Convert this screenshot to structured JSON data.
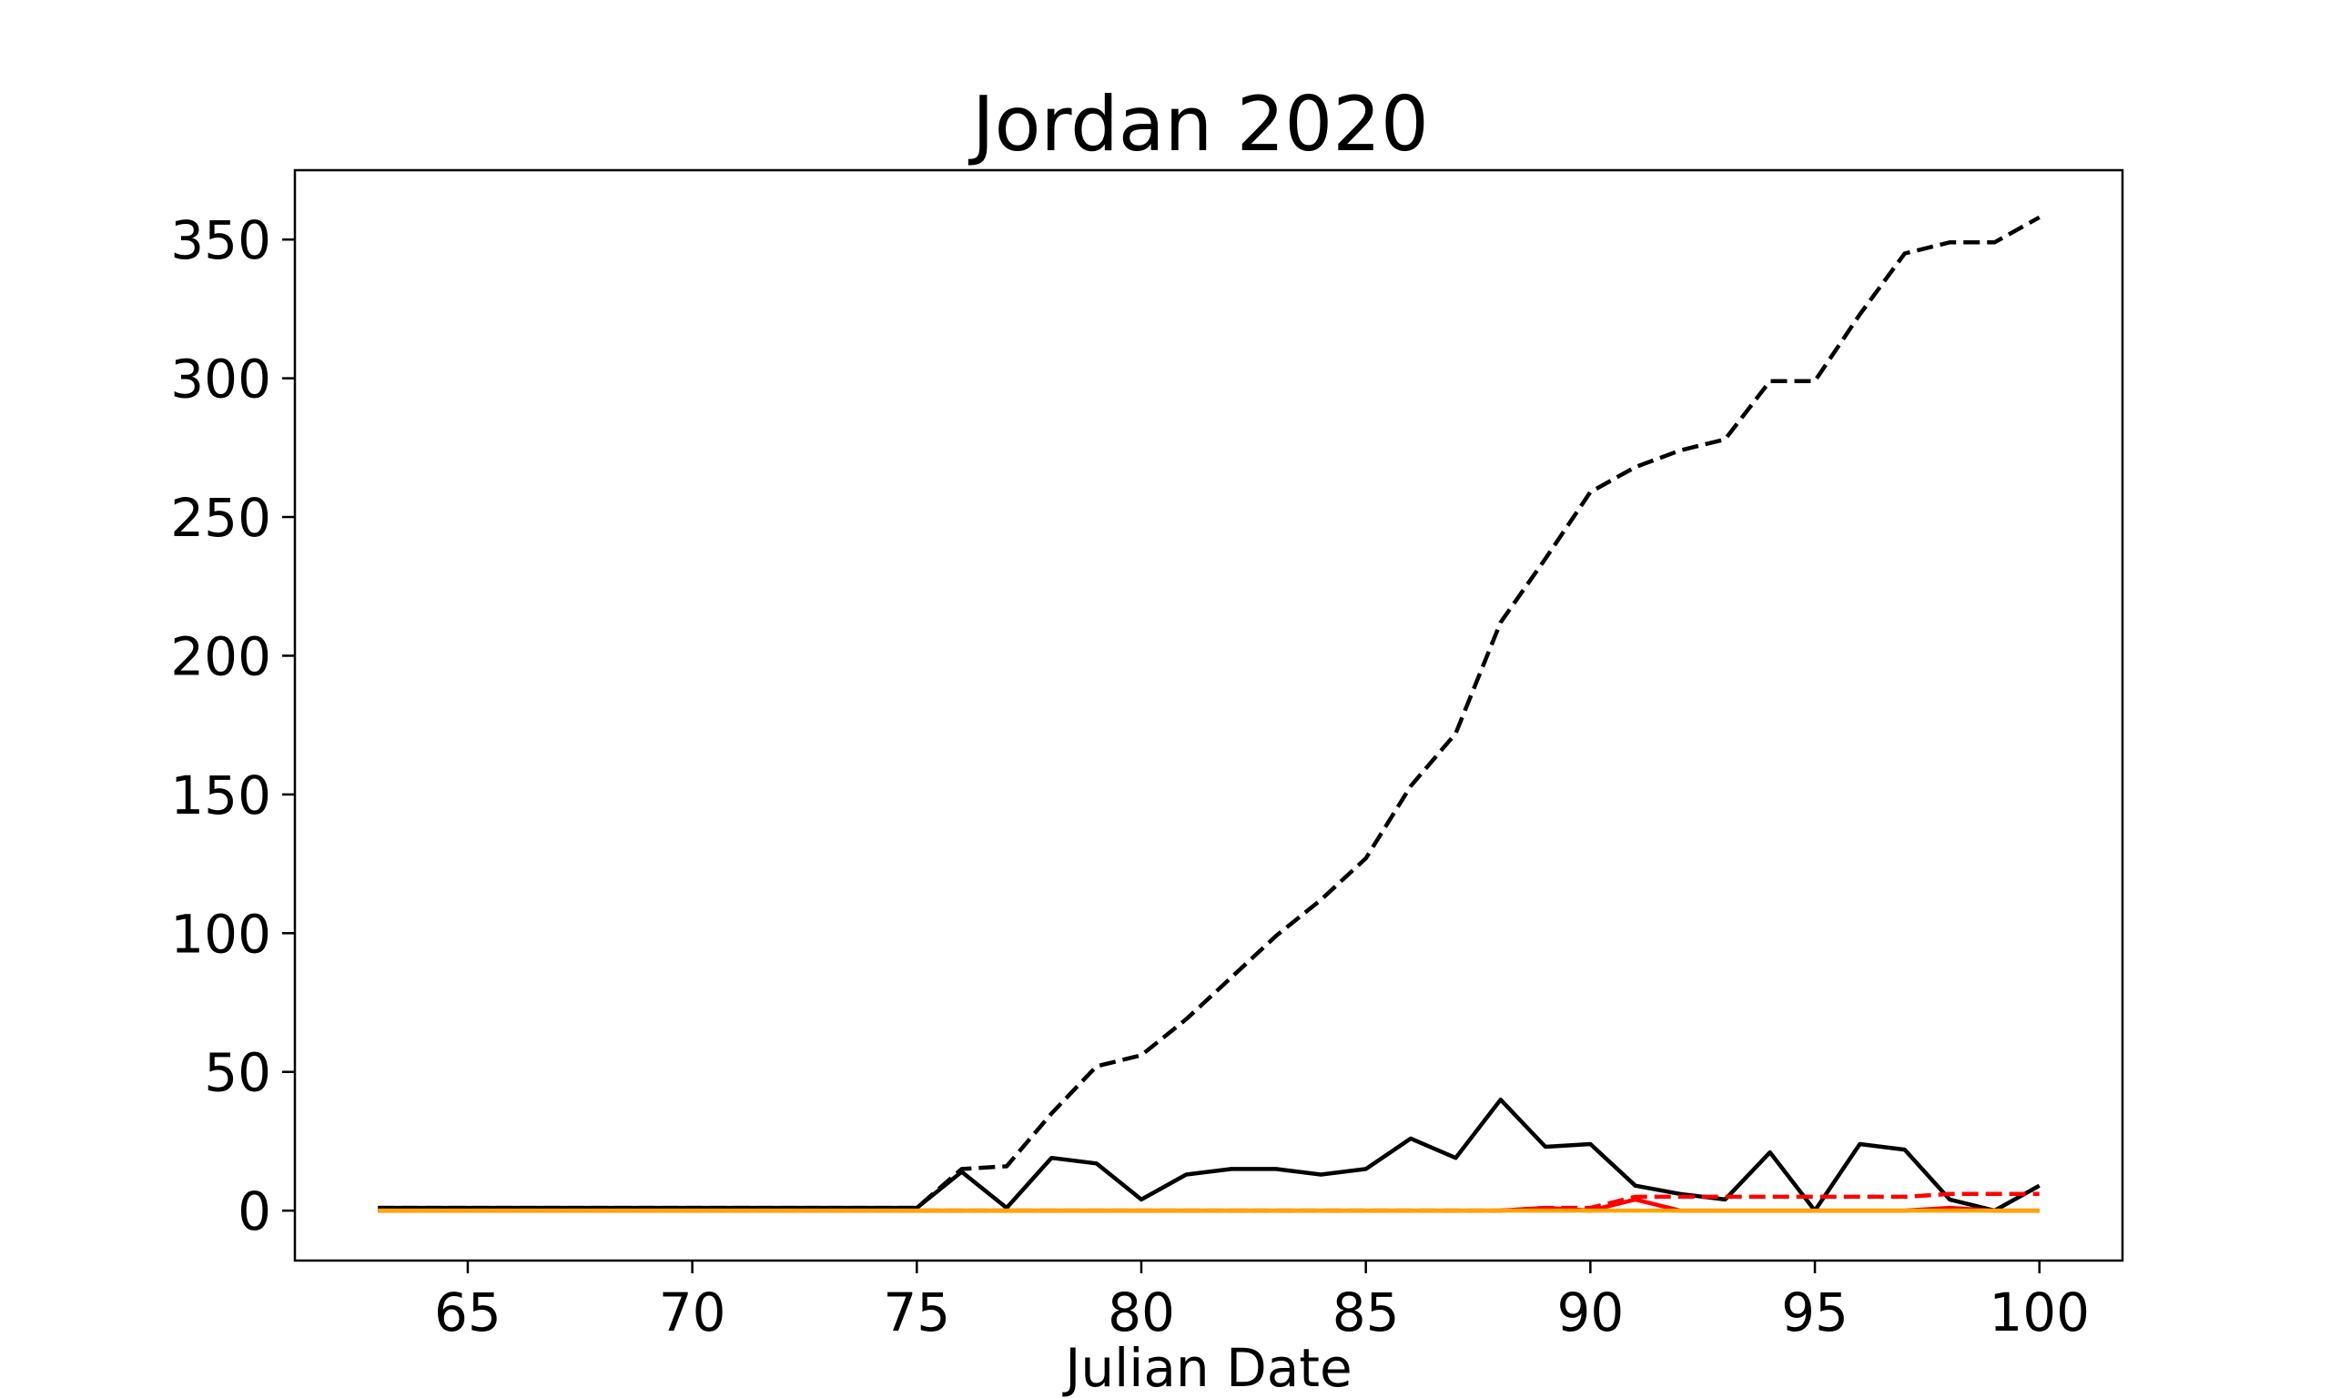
{
  "chart_data": {
    "type": "line",
    "title": "Jordan 2020",
    "xlabel": "Julian Date",
    "ylabel": "",
    "xlim": [
      61.15,
      101.85
    ],
    "ylim": [
      -18,
      375
    ],
    "xticks": [
      65,
      70,
      75,
      80,
      85,
      90,
      95,
      100
    ],
    "yticks": [
      0,
      50,
      100,
      150,
      200,
      250,
      300,
      350
    ],
    "grid": false,
    "legend": "none",
    "x": [
      63,
      64,
      65,
      66,
      67,
      68,
      69,
      70,
      71,
      72,
      73,
      74,
      75,
      76,
      77,
      78,
      79,
      80,
      81,
      82,
      83,
      84,
      85,
      86,
      87,
      88,
      89,
      90,
      91,
      92,
      93,
      94,
      95,
      96,
      97,
      98,
      99,
      100
    ],
    "series": [
      {
        "color": "#000000",
        "dash": "dashed",
        "values": [
          1,
          1,
          1,
          1,
          1,
          1,
          1,
          1,
          1,
          1,
          1,
          1,
          1,
          15,
          16,
          35,
          52,
          56,
          69,
          84,
          99,
          112,
          127,
          153,
          172,
          212,
          235,
          259,
          268,
          274,
          278,
          299,
          299,
          323,
          345,
          349,
          349,
          358
        ]
      },
      {
        "color": "#000000",
        "dash": "solid",
        "values": [
          1,
          1,
          1,
          1,
          1,
          1,
          1,
          1,
          1,
          1,
          1,
          1,
          1,
          14,
          1,
          19,
          17,
          4,
          13,
          15,
          15,
          13,
          15,
          26,
          19,
          40,
          23,
          24,
          9,
          6,
          4,
          21,
          0,
          24,
          22,
          4,
          0,
          9
        ]
      },
      {
        "color": "#ff0000",
        "dash": "dashed",
        "values": [
          0,
          0,
          0,
          0,
          0,
          0,
          0,
          0,
          0,
          0,
          0,
          0,
          0,
          0,
          0,
          0,
          0,
          0,
          0,
          0,
          0,
          0,
          0,
          0,
          0,
          0,
          1,
          1,
          5,
          5,
          5,
          5,
          5,
          5,
          5,
          6,
          6,
          6
        ]
      },
      {
        "color": "#ff0000",
        "dash": "solid",
        "values": [
          0,
          0,
          0,
          0,
          0,
          0,
          0,
          0,
          0,
          0,
          0,
          0,
          0,
          0,
          0,
          0,
          0,
          0,
          0,
          0,
          0,
          0,
          0,
          0,
          0,
          0,
          1,
          0,
          4,
          0,
          0,
          0,
          0,
          0,
          0,
          1,
          0,
          0
        ]
      },
      {
        "color": "#ffa500",
        "dash": "solid",
        "values": [
          0,
          0,
          0,
          0,
          0,
          0,
          0,
          0,
          0,
          0,
          0,
          0,
          0,
          0,
          0,
          0,
          0,
          0,
          0,
          0,
          0,
          0,
          0,
          0,
          0,
          0,
          0,
          0,
          0,
          0,
          0,
          0,
          0,
          0,
          0,
          0,
          0,
          0
        ]
      }
    ]
  }
}
